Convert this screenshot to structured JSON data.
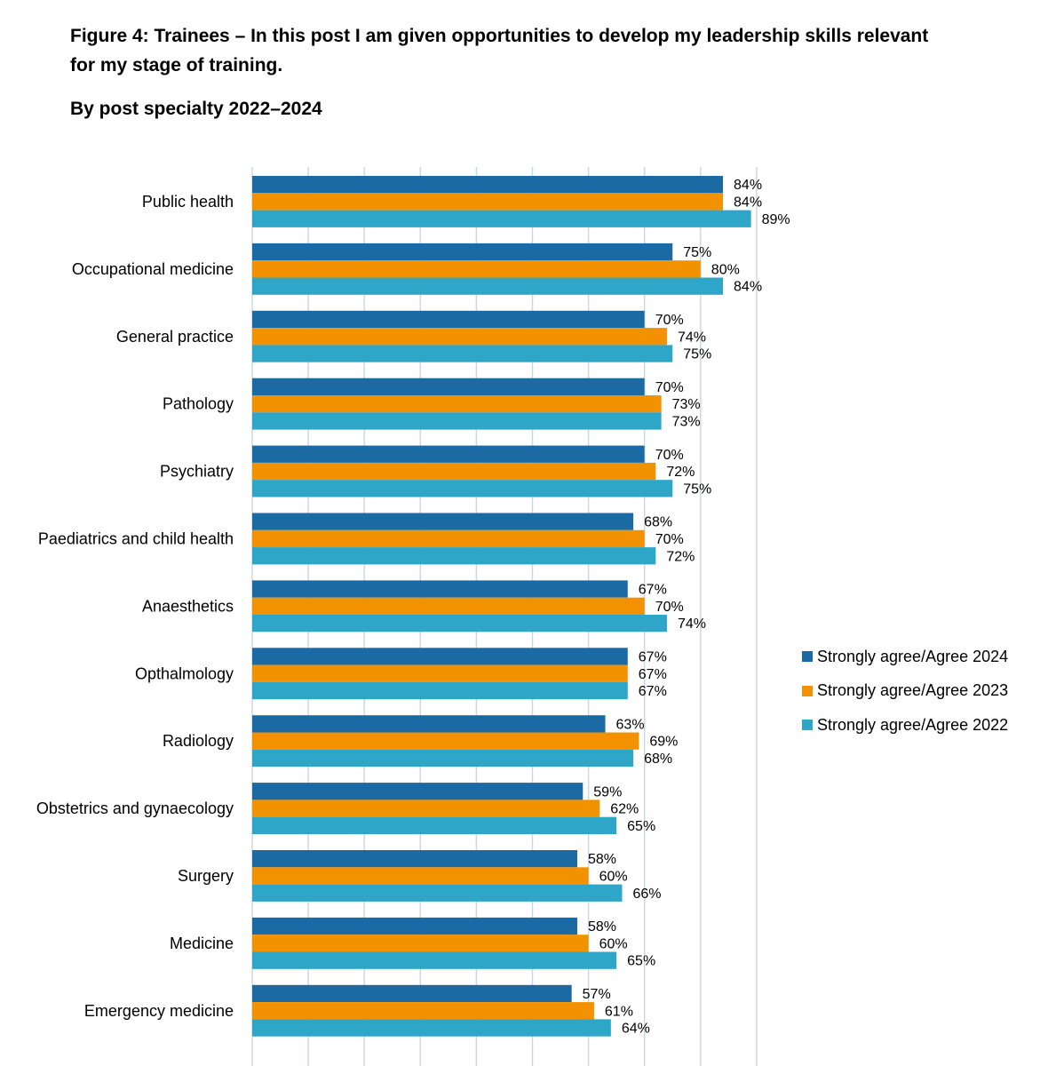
{
  "header": {
    "title": "Figure 4: Trainees – In this post I am given opportunities to develop my leadership skills relevant for my stage of training.",
    "subtitle": "By post specialty 2022–2024"
  },
  "chart_data": {
    "type": "bar",
    "orientation": "horizontal",
    "title": "Figure 4: Trainees – In this post I am given opportunities to develop my leadership skills relevant for my stage of training.",
    "subtitle": "By post specialty 2022–2024",
    "xlim": [
      0,
      90
    ],
    "gridlines": true,
    "legend_position": "right",
    "value_suffix": "%",
    "categories": [
      "Public health",
      "Occupational medicine",
      "General practice",
      "Pathology",
      "Psychiatry",
      "Paediatrics and child health",
      "Anaesthetics",
      "Opthalmology",
      "Radiology",
      "Obstetrics and gynaecology",
      "Surgery",
      "Medicine",
      "Emergency medicine"
    ],
    "series": [
      {
        "name": "Strongly agree/Agree 2024",
        "color": "#1c6aa3",
        "values": [
          84,
          75,
          70,
          70,
          70,
          68,
          67,
          67,
          63,
          59,
          58,
          58,
          57
        ]
      },
      {
        "name": "Strongly agree/Agree 2023",
        "color": "#f39200",
        "values": [
          84,
          80,
          74,
          73,
          72,
          70,
          70,
          67,
          69,
          62,
          60,
          60,
          61
        ]
      },
      {
        "name": "Strongly agree/Agree 2022",
        "color": "#2ea6c8",
        "values": [
          89,
          84,
          75,
          73,
          75,
          72,
          74,
          67,
          68,
          65,
          66,
          65,
          64
        ]
      }
    ]
  }
}
